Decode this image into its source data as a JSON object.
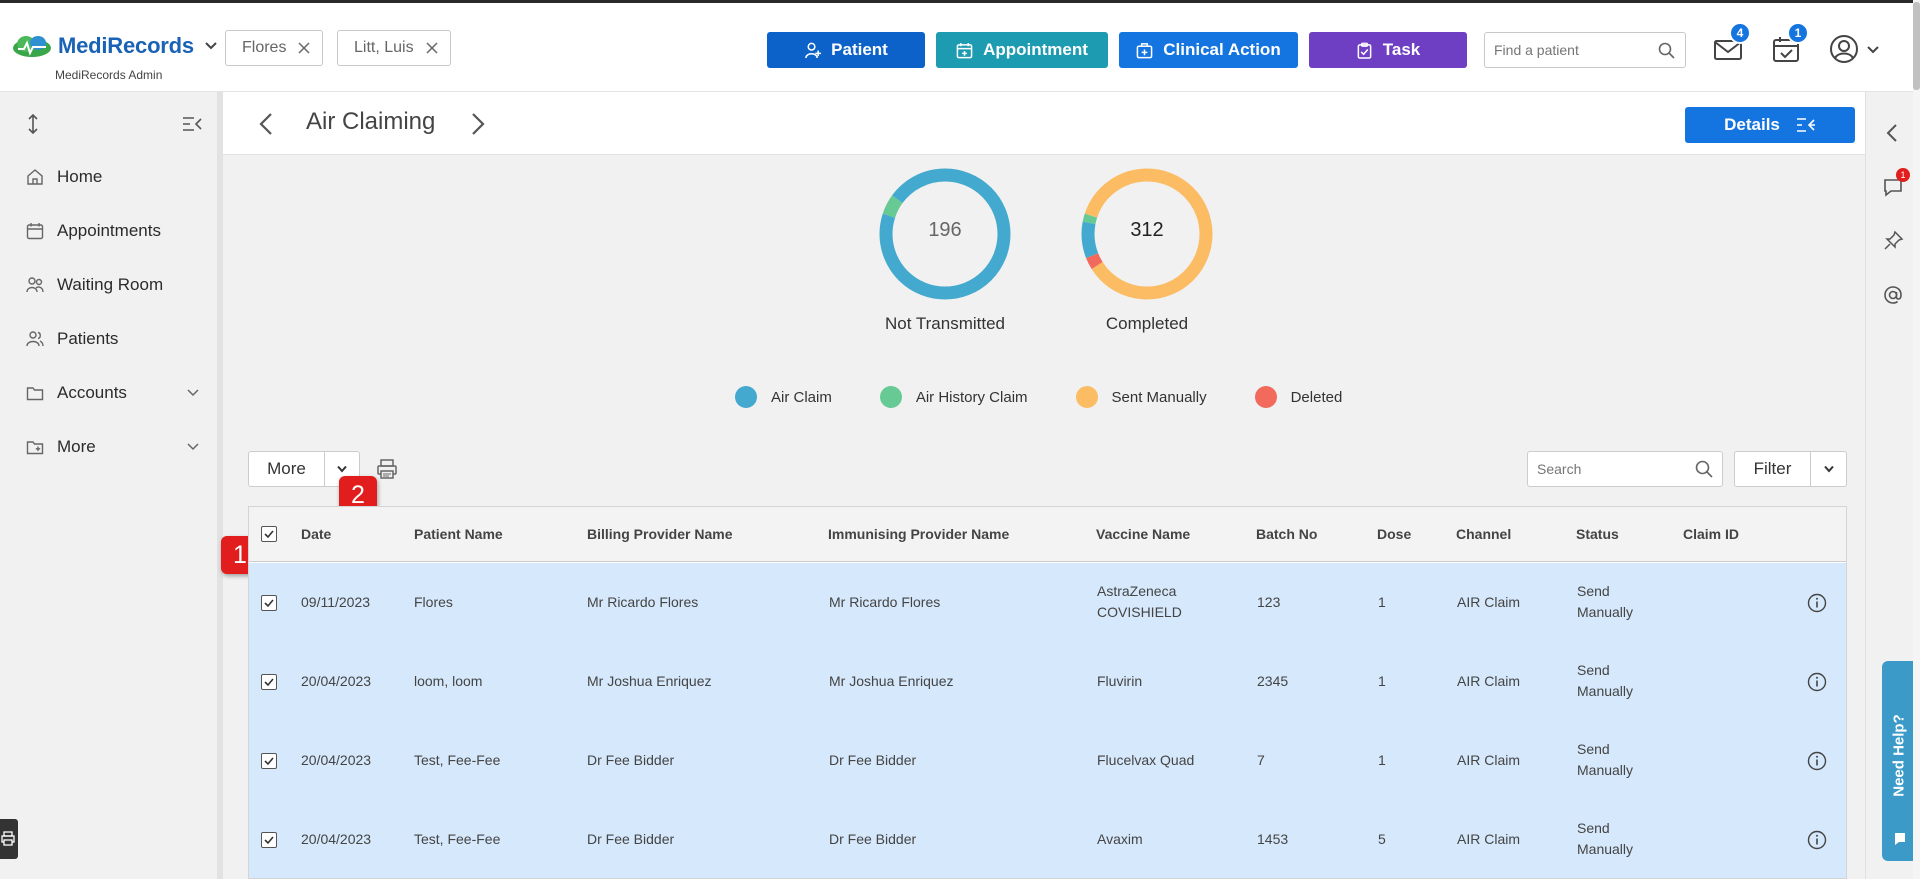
{
  "app": {
    "brand": "MediRecords",
    "subtitle": "MediRecords Admin"
  },
  "patient_chips": [
    {
      "label": "Flores"
    },
    {
      "label": "Litt, Luis"
    }
  ],
  "actions": {
    "patient": "Patient",
    "appointment": "Appointment",
    "clinical_action": "Clinical Action",
    "task": "Task"
  },
  "search": {
    "placeholder": "Find a patient"
  },
  "notifications": {
    "mail_count": "4",
    "calendar_count": "1"
  },
  "sidebar": {
    "items": [
      {
        "label": "Home"
      },
      {
        "label": "Appointments"
      },
      {
        "label": "Waiting Room"
      },
      {
        "label": "Patients"
      },
      {
        "label": "Accounts"
      },
      {
        "label": "More"
      }
    ]
  },
  "page": {
    "title": "Air Claiming",
    "details_label": "Details"
  },
  "summary": {
    "not_transmitted": {
      "value": "196",
      "label": "Not Transmitted"
    },
    "completed": {
      "value": "312",
      "label": "Completed"
    }
  },
  "legend": [
    {
      "label": "Air Claim",
      "color": "#43a9cf"
    },
    {
      "label": "Air History Claim",
      "color": "#67c994"
    },
    {
      "label": "Sent Manually",
      "color": "#fbbc64"
    },
    {
      "label": "Deleted",
      "color": "#f16a5c"
    }
  ],
  "chart_data": [
    {
      "type": "pie",
      "title": "",
      "center_label": "196",
      "caption": "Not Transmitted",
      "slices": [
        {
          "name": "Air Claim",
          "value": 0.95
        },
        {
          "name": "Air History Claim",
          "value": 0.05
        }
      ]
    },
    {
      "type": "pie",
      "title": "",
      "center_label": "312",
      "caption": "Completed",
      "slices": [
        {
          "name": "Sent Manually",
          "value": 0.86
        },
        {
          "name": "Deleted",
          "value": 0.03
        },
        {
          "name": "Air Claim",
          "value": 0.09
        },
        {
          "name": "Air History Claim",
          "value": 0.02
        }
      ]
    }
  ],
  "toolbar": {
    "more_label": "More",
    "search_placeholder": "Search",
    "filter_label": "Filter"
  },
  "callouts": {
    "one": "1",
    "two": "2"
  },
  "table": {
    "columns": [
      "Date",
      "Patient Name",
      "Billing Provider Name",
      "Immunising Provider Name",
      "Vaccine Name",
      "Batch No",
      "Dose",
      "Channel",
      "Status",
      "Claim ID"
    ],
    "rows": [
      {
        "date": "09/11/2023",
        "patient": "Flores",
        "billing": "Mr Ricardo Flores",
        "immunising": "Mr Ricardo Flores",
        "vaccine": "AstraZeneca COVISHIELD",
        "batch": "123",
        "dose": "1",
        "channel": "AIR Claim",
        "status": "Send Manually",
        "claim_id": ""
      },
      {
        "date": "20/04/2023",
        "patient": "loom, loom",
        "billing": "Mr Joshua Enriquez",
        "immunising": "Mr Joshua Enriquez",
        "vaccine": "Fluvirin",
        "batch": "2345",
        "dose": "1",
        "channel": "AIR Claim",
        "status": "Send Manually",
        "claim_id": ""
      },
      {
        "date": "20/04/2023",
        "patient": "Test, Fee-Fee",
        "billing": "Dr Fee Bidder",
        "immunising": "Dr Fee Bidder",
        "vaccine": "Flucelvax Quad",
        "batch": "7",
        "dose": "1",
        "channel": "AIR Claim",
        "status": "Send Manually",
        "claim_id": ""
      },
      {
        "date": "20/04/2023",
        "patient": "Test, Fee-Fee",
        "billing": "Dr Fee Bidder",
        "immunising": "Dr Fee Bidder",
        "vaccine": "Avaxim",
        "batch": "1453",
        "dose": "5",
        "channel": "AIR Claim",
        "status": "Send Manually",
        "claim_id": ""
      }
    ]
  },
  "right_rail": {
    "chat_badge": "1",
    "help_label": "Need Help?"
  }
}
